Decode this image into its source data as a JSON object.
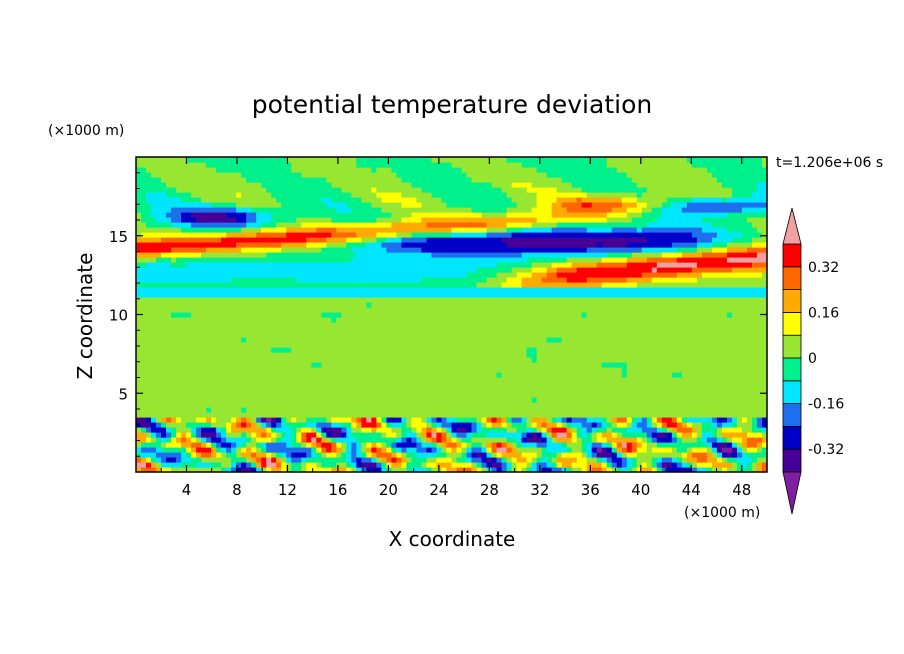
{
  "chart_data": {
    "type": "heatmap",
    "title": "potential temperature deviation",
    "xlabel": "X coordinate",
    "ylabel": "Z coordinate",
    "x_unit": "(×1000 m)",
    "y_unit": "(×1000 m)",
    "time_label": "t=1.206e+06 s",
    "xlim": [
      0,
      50
    ],
    "ylim": [
      0,
      20
    ],
    "x_ticks": [
      4,
      8,
      12,
      16,
      20,
      24,
      28,
      32,
      36,
      40,
      44,
      48
    ],
    "y_ticks": [
      5,
      10,
      15
    ],
    "colorbar": {
      "levels": [
        -0.4,
        -0.32,
        -0.24,
        -0.16,
        -0.08,
        0,
        0.08,
        0.16,
        0.24,
        0.32,
        0.4
      ],
      "labels": [
        "0.32",
        "0.16",
        "0",
        "-0.16",
        "-0.32"
      ],
      "label_values": [
        0.32,
        0.16,
        0,
        -0.16,
        -0.32
      ],
      "colors": [
        "#7d1fa0",
        "#460098",
        "#0000c8",
        "#1e6ef0",
        "#00e6ff",
        "#00f08c",
        "#96e632",
        "#ffff00",
        "#ffaa00",
        "#ff6600",
        "#ff0000",
        "#f0a0a0"
      ],
      "extend": "both"
    },
    "grid": false,
    "legend": "right"
  }
}
